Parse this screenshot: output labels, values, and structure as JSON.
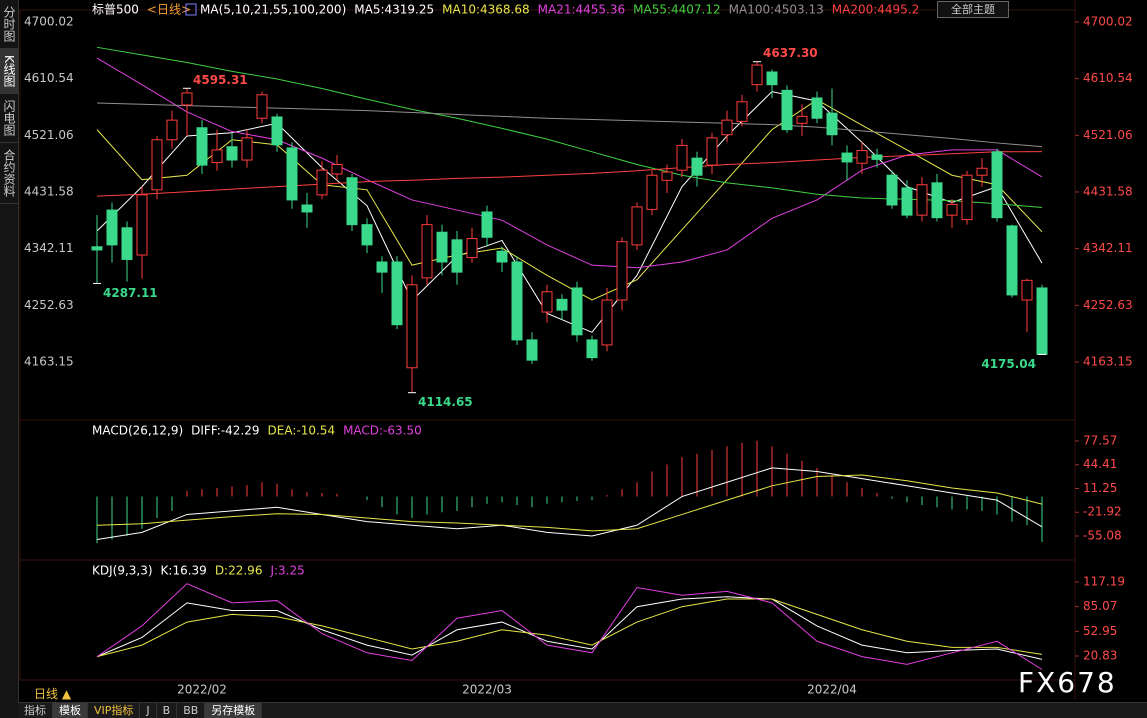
{
  "ui": {
    "tabs_left": [
      "分时图",
      "K线图",
      "闪电图",
      "合约资料"
    ],
    "theme_button": "全部主题",
    "bottom_tabs": [
      "指标",
      "模板",
      "VIP指标",
      "J",
      "B",
      "BB",
      "另存模板"
    ],
    "period_button": "日线 ▲",
    "watermark": "FX678"
  },
  "chart_data": [
    {
      "type": "candlestick",
      "title": "标普500",
      "subtitle": "<日线>",
      "indicator": "MA(5,10,21,55,100,200)",
      "up_color": "#ff3c3c",
      "down_color": "#3ad98c",
      "ylim": [
        4071.5,
        4712.6
      ],
      "yticks": [
        4700.02,
        4610.54,
        4521.06,
        4431.58,
        4342.11,
        4252.63,
        4163.15
      ],
      "x_labels": [
        {
          "index": 7,
          "label": "2022/02"
        },
        {
          "index": 26,
          "label": "2022/03"
        },
        {
          "index": 49,
          "label": "2022/04"
        }
      ],
      "candles": {
        "open": [
          4345,
          4403,
          4375,
          4332,
          4435,
          4514,
          4569,
          4533,
          4478,
          4503,
          4482,
          4548,
          4550,
          4501,
          4411,
          4427,
          4460,
          4454,
          4380,
          4321,
          4321,
          4154,
          4296,
          4368,
          4356,
          4328,
          4400,
          4338,
          4321,
          4198,
          4242,
          4262,
          4280,
          4198,
          4190,
          4261,
          4348,
          4404,
          4450,
          4466,
          4485,
          4474,
          4522,
          4543,
          4601,
          4621,
          4592,
          4540,
          4580,
          4556,
          4493,
          4477,
          4490,
          4458,
          4438,
          4395,
          4446,
          4395,
          4388,
          4458,
          4495,
          4378,
          4261,
          4280
        ],
        "high": [
          4395,
          4415,
          4385,
          4440,
          4520,
          4560,
          4595.31,
          4545,
          4530,
          4525,
          4530,
          4590,
          4555,
          4510,
          4430,
          4480,
          4490,
          4460,
          4390,
          4330,
          4330,
          4300,
          4395,
          4380,
          4370,
          4375,
          4410,
          4345,
          4330,
          4210,
          4285,
          4270,
          4290,
          4205,
          4280,
          4360,
          4415,
          4465,
          4475,
          4515,
          4495,
          4525,
          4560,
          4585,
          4637.3,
          4625,
          4600,
          4570,
          4590,
          4595,
          4505,
          4510,
          4500,
          4465,
          4450,
          4455,
          4460,
          4420,
          4465,
          4485,
          4500,
          4380,
          4295,
          4285
        ],
        "low": [
          4287.11,
          4320,
          4290,
          4295,
          4420,
          4500,
          4520,
          4460,
          4465,
          4470,
          4470,
          4540,
          4495,
          4405,
          4375,
          4420,
          4450,
          4370,
          4335,
          4272,
          4215,
          4114.65,
          4285,
          4300,
          4285,
          4320,
          4345,
          4305,
          4190,
          4160,
          4225,
          4230,
          4195,
          4165,
          4180,
          4245,
          4340,
          4395,
          4430,
          4455,
          4440,
          4460,
          4510,
          4535,
          4590,
          4580,
          4525,
          4520,
          4540,
          4505,
          4450,
          4460,
          4470,
          4405,
          4390,
          4385,
          4385,
          4375,
          4380,
          4440,
          4385,
          4265,
          4210,
          4175.04
        ],
        "close": [
          4340,
          4348,
          4325,
          4427,
          4514,
          4545,
          4588,
          4474,
          4498,
          4482,
          4517,
          4585,
          4506,
          4419,
          4400,
          4466,
          4475,
          4380,
          4348,
          4305,
          4222,
          4285,
          4380,
          4321,
          4305,
          4358,
          4360,
          4321,
          4198,
          4166,
          4274,
          4245,
          4206,
          4170,
          4261,
          4353,
          4408,
          4458,
          4463,
          4505,
          4458,
          4517,
          4545,
          4574,
          4632,
          4601,
          4530,
          4551,
          4548,
          4522,
          4479,
          4497,
          4483,
          4411,
          4395,
          4443,
          4391,
          4412,
          4458,
          4469,
          4391,
          4269,
          4292,
          4175.04
        ]
      },
      "annotations": [
        {
          "index": 0,
          "value": 4287.11
        },
        {
          "index": 6,
          "value": 4595.31
        },
        {
          "index": 21,
          "value": 4114.65
        },
        {
          "index": 44,
          "value": 4637.3,
          "label": "4637.30"
        },
        {
          "index": 63,
          "value": 4175.04
        }
      ],
      "series": [
        {
          "name": "MA5:4319.25",
          "color": "#ffffff",
          "x": [
            0,
            3,
            6,
            9,
            12,
            15,
            18,
            21,
            24,
            27,
            30,
            33,
            36,
            39,
            42,
            45,
            48,
            51,
            54,
            57,
            60,
            63
          ],
          "values": [
            4370,
            4440,
            4520,
            4525,
            4540,
            4470,
            4410,
            4260,
            4330,
            4355,
            4240,
            4210,
            4300,
            4440,
            4520,
            4590,
            4575,
            4510,
            4440,
            4415,
            4440,
            4319.25
          ]
        },
        {
          "name": "MA10:4368.68",
          "color": "#e6e64a",
          "x": [
            0,
            3,
            6,
            9,
            12,
            15,
            18,
            21,
            24,
            27,
            30,
            33,
            36,
            39,
            42,
            45,
            48,
            51,
            54,
            57,
            60,
            63
          ],
          "values": [
            4530,
            4451,
            4458,
            4514,
            4506,
            4443,
            4435,
            4316,
            4332,
            4343,
            4300,
            4261,
            4293,
            4372,
            4451,
            4530,
            4577,
            4537,
            4498,
            4458,
            4443,
            4368.68
          ]
        },
        {
          "name": "MA21:4455.36",
          "color": "#e040e0",
          "x": [
            0,
            3,
            6,
            9,
            12,
            15,
            18,
            21,
            24,
            27,
            30,
            33,
            36,
            39,
            42,
            45,
            48,
            51,
            54,
            57,
            60,
            63
          ],
          "values": [
            4643,
            4601,
            4558,
            4527,
            4514,
            4485,
            4451,
            4419,
            4403,
            4387,
            4348,
            4316,
            4312,
            4321,
            4340,
            4390,
            4419,
            4466,
            4490,
            4498,
            4498,
            4455.36
          ]
        },
        {
          "name": "MA55:4407.12",
          "color": "#40d040",
          "x": [
            0,
            3,
            6,
            9,
            12,
            15,
            18,
            21,
            24,
            27,
            30,
            33,
            36,
            39,
            42,
            45,
            48,
            51,
            54,
            57,
            60,
            63
          ],
          "values": [
            4660,
            4648,
            4636,
            4622,
            4610,
            4595,
            4578,
            4562,
            4548,
            4532,
            4515,
            4495,
            4475,
            4458,
            4446,
            4438,
            4428,
            4422,
            4420,
            4418,
            4413,
            4407.12
          ]
        },
        {
          "name": "MA100:4503.13",
          "color": "#909090",
          "x": [
            0,
            3,
            6,
            9,
            12,
            15,
            18,
            21,
            24,
            27,
            30,
            33,
            36,
            39,
            42,
            45,
            48,
            51,
            54,
            57,
            60,
            63
          ],
          "values": [
            4572,
            4570,
            4568,
            4566,
            4564,
            4562,
            4560,
            4557,
            4554,
            4551,
            4548,
            4546,
            4544,
            4542,
            4540,
            4538,
            4534,
            4528,
            4522,
            4516,
            4509,
            4503.13
          ]
        },
        {
          "name": "MA200:4495.2",
          "color": "#ff4040",
          "x": [
            0,
            3,
            6,
            9,
            12,
            15,
            18,
            21,
            24,
            27,
            30,
            33,
            36,
            39,
            42,
            45,
            48,
            51,
            54,
            57,
            60,
            63
          ],
          "values": [
            4425,
            4428,
            4432,
            4436,
            4440,
            4444,
            4448,
            4450,
            4453,
            4455,
            4458,
            4461,
            4465,
            4470,
            4475,
            4478,
            4482,
            4486,
            4489,
            4492,
            4495,
            4495.2
          ]
        }
      ]
    },
    {
      "type": "macd",
      "title": "MACD(26,12,9)",
      "ylim": [
        -88.6,
        101.3
      ],
      "yticks": [
        77.57,
        44.41,
        11.25,
        -21.92,
        -55.08
      ],
      "histogram": {
        "name": "MACD:-63.50",
        "color": "#e040e0",
        "up_color": "#ff3c3c",
        "down_color": "#3ad98c",
        "values": [
          -65,
          -60,
          -55,
          -45,
          -30,
          -20,
          8,
          10,
          12,
          14,
          16,
          20,
          18,
          10,
          6,
          5,
          4,
          0,
          -5,
          -15,
          -25,
          -30,
          -25,
          -22,
          -20,
          -15,
          -10,
          -8,
          -12,
          -15,
          -10,
          -8,
          -6,
          -5,
          2,
          10,
          20,
          35,
          45,
          55,
          60,
          65,
          70,
          75,
          78,
          70,
          60,
          50,
          40,
          30,
          20,
          12,
          5,
          -3,
          -8,
          -12,
          -15,
          -18,
          -18,
          -20,
          -25,
          -35,
          -40,
          -63.5
        ]
      },
      "series": [
        {
          "name": "DIFF:-42.29",
          "color": "#ffffff",
          "x": [
            0,
            3,
            6,
            9,
            12,
            15,
            18,
            21,
            24,
            27,
            30,
            33,
            36,
            39,
            42,
            45,
            48,
            51,
            54,
            57,
            60,
            63
          ],
          "values": [
            -60,
            -50,
            -25,
            -20,
            -15,
            -25,
            -35,
            -40,
            -45,
            -40,
            -50,
            -55,
            -40,
            0,
            20,
            40,
            35,
            25,
            15,
            5,
            -5,
            -42.29
          ]
        },
        {
          "name": "DEA:-10.54",
          "color": "#e6e64a",
          "x": [
            0,
            3,
            6,
            9,
            12,
            15,
            18,
            21,
            24,
            27,
            30,
            33,
            36,
            39,
            42,
            45,
            48,
            51,
            54,
            57,
            60,
            63
          ],
          "values": [
            -40,
            -38,
            -33,
            -28,
            -24,
            -25,
            -30,
            -35,
            -37,
            -40,
            -43,
            -48,
            -45,
            -25,
            -5,
            15,
            28,
            30,
            22,
            12,
            5,
            -10.54
          ]
        }
      ]
    },
    {
      "type": "kdj",
      "title": "KDJ(9,3,3)",
      "ylim": [
        -10.4,
        140.6
      ],
      "yticks": [
        117.19,
        85.07,
        52.95,
        20.83
      ],
      "series": [
        {
          "name": "K:16.39",
          "color": "#ffffff",
          "x": [
            0,
            3,
            6,
            9,
            12,
            15,
            18,
            21,
            24,
            27,
            30,
            33,
            36,
            39,
            42,
            45,
            48,
            51,
            54,
            57,
            60,
            63
          ],
          "values": [
            20,
            45,
            90,
            80,
            80,
            55,
            35,
            22,
            55,
            65,
            40,
            30,
            85,
            95,
            98,
            95,
            60,
            35,
            25,
            28,
            30,
            16.39
          ]
        },
        {
          "name": "D:22.96",
          "color": "#e6e64a",
          "x": [
            0,
            3,
            6,
            9,
            12,
            15,
            18,
            21,
            24,
            27,
            30,
            33,
            36,
            39,
            42,
            45,
            48,
            51,
            54,
            57,
            60,
            63
          ],
          "values": [
            20,
            35,
            65,
            75,
            72,
            60,
            45,
            30,
            40,
            55,
            48,
            35,
            65,
            85,
            95,
            95,
            75,
            55,
            40,
            32,
            32,
            22.96
          ]
        },
        {
          "name": "J:3.25",
          "color": "#e040e0",
          "x": [
            0,
            3,
            6,
            9,
            12,
            15,
            18,
            21,
            24,
            27,
            30,
            33,
            36,
            39,
            42,
            45,
            48,
            51,
            54,
            57,
            60,
            63
          ],
          "values": [
            20,
            60,
            115,
            90,
            93,
            50,
            25,
            15,
            70,
            80,
            35,
            25,
            110,
            100,
            105,
            90,
            40,
            20,
            10,
            25,
            40,
            3.25
          ]
        }
      ]
    }
  ]
}
